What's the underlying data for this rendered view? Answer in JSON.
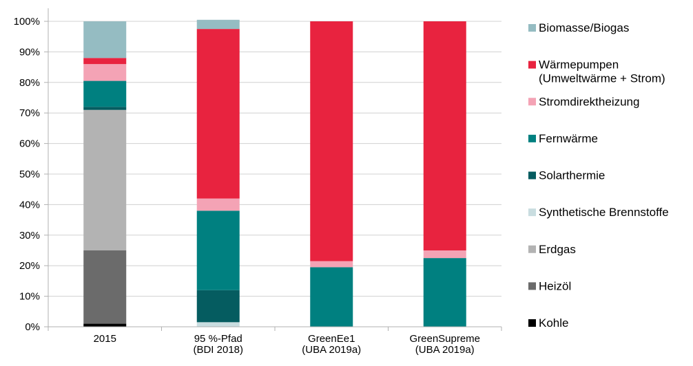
{
  "chart_data": {
    "type": "bar",
    "stacked": true,
    "categories": [
      [
        "2015"
      ],
      [
        "95 %-Pfad",
        "(BDI 2018)"
      ],
      [
        "GreenEe1",
        "(UBA 2019a)"
      ],
      [
        "GreenSupreme",
        "(UBA 2019a)"
      ]
    ],
    "ylim": [
      0,
      100
    ],
    "yticks": [
      "0%",
      "10%",
      "20%",
      "30%",
      "40%",
      "50%",
      "60%",
      "70%",
      "80%",
      "90%",
      "100%"
    ],
    "grid": true,
    "legend_position": "right",
    "series": [
      {
        "name": "Kohle",
        "color": "#000000",
        "values": [
          1,
          0,
          0,
          0
        ]
      },
      {
        "name": "Heizöl",
        "color": "#6b6b6b",
        "values": [
          24,
          0,
          0,
          0
        ]
      },
      {
        "name": "Erdgas",
        "color": "#b3b3b3",
        "values": [
          46,
          0,
          0,
          0
        ]
      },
      {
        "name": "Synthetische Brennstoffe",
        "color": "#c9dde0",
        "values": [
          0,
          1.5,
          0,
          0
        ]
      },
      {
        "name": "Solarthermie",
        "color": "#055c60",
        "values": [
          1,
          10.5,
          0,
          0
        ]
      },
      {
        "name": "Fernwärme",
        "color": "#008080",
        "values": [
          8.5,
          26,
          19.5,
          22.5
        ]
      },
      {
        "name": "Stromdirektheizung",
        "color": "#f4a3b5",
        "values": [
          5.5,
          4,
          2,
          2.5
        ]
      },
      {
        "name": "Wärmepumpen\n(Umweltwärme + Strom)",
        "color": "#e8233f",
        "values": [
          2,
          55.5,
          78.5,
          75
        ]
      },
      {
        "name": "Biomasse/Biogas",
        "color": "#95bcc2",
        "values": [
          12,
          3,
          0,
          0
        ]
      }
    ]
  }
}
